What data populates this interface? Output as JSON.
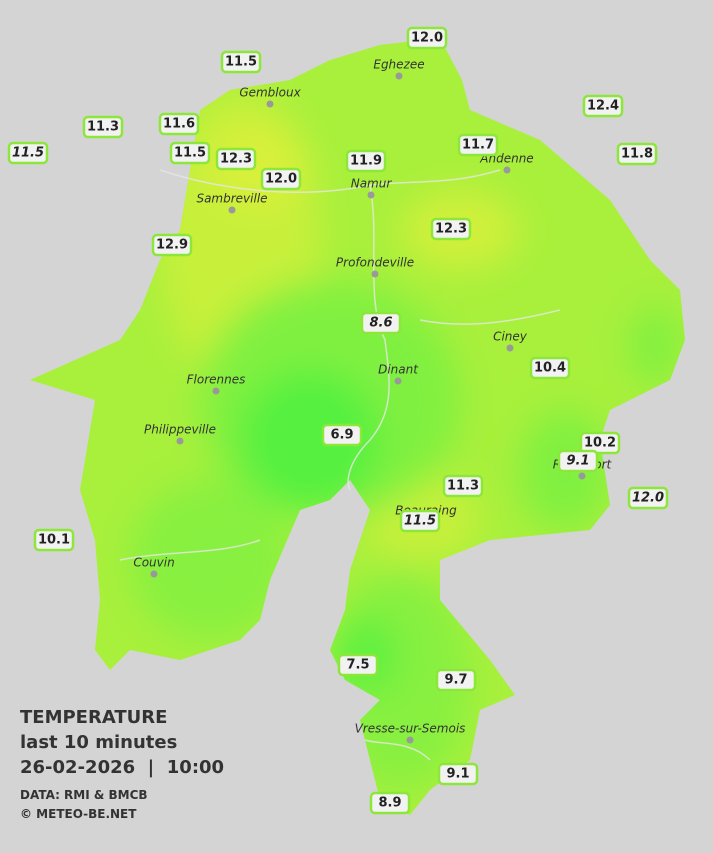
{
  "legend": {
    "title": "TEMPERATURE",
    "period": "last 10 minutes",
    "datetime": "26-02-2026  |  10:00",
    "source": "DATA: RMI & BMCB",
    "copyright": "© METEO-BE.NET"
  },
  "cities": [
    "Eghezee",
    "Gembloux",
    "Andenne",
    "Namur",
    "Sambreville",
    "Profondeville",
    "Ciney",
    "Dinant",
    "Florennes",
    "Philippeville",
    "Rochefort",
    "Beauraing",
    "Couvin",
    "Vresse-sur-Semois"
  ],
  "stations": [
    "12.0",
    "11.5",
    "12.4",
    "11.3",
    "11.6",
    "11.7",
    "11.8",
    "11.5",
    "11.5",
    "12.3",
    "11.9",
    "12.0",
    "12.3",
    "12.9",
    "8.6",
    "10.4",
    "6.9",
    "10.2",
    "9.1",
    "11.3",
    "12.0",
    "11.5",
    "10.1",
    "7.5",
    "9.7",
    "9.1",
    "8.9"
  ]
}
